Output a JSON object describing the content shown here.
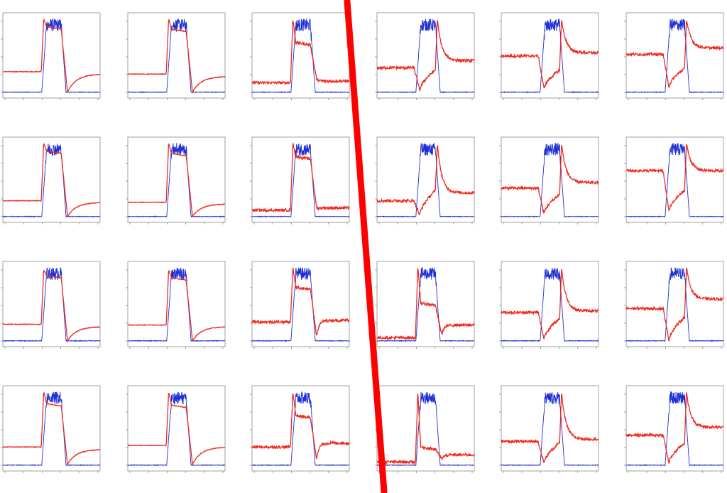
{
  "chart_data": {
    "type": "line",
    "layout": {
      "rows": 4,
      "cols": 6
    },
    "x_range": [
      0,
      100
    ],
    "y_range": [
      0,
      1
    ],
    "grid": false,
    "legend": "none",
    "colors": {
      "blue_series": "#1f2fd6",
      "red_series": "#ee2a1e",
      "divider": "#ff0000",
      "frame": "#8a8a8a"
    },
    "series_names": [
      "blue",
      "red"
    ],
    "blue_profile": {
      "baseline": 0.02,
      "plateau": 0.88,
      "rise": [
        40,
        45
      ],
      "fall": [
        60,
        65
      ],
      "noise_band": 0.1
    },
    "divider": {
      "type": "diagonal-line",
      "separates_columns": [
        3,
        4
      ]
    },
    "panels": [
      {
        "row": 1,
        "col": 1,
        "red": {
          "base_before": 0.28,
          "peak": 0.95,
          "plateau": 0.85,
          "dip": 0.02,
          "base_after": 0.25,
          "recovery": "slow"
        }
      },
      {
        "row": 1,
        "col": 2,
        "red": {
          "base_before": 0.25,
          "peak": 0.95,
          "plateau": 0.82,
          "dip": 0.02,
          "base_after": 0.22,
          "recovery": "slow"
        }
      },
      {
        "row": 1,
        "col": 3,
        "red": {
          "base_before": 0.14,
          "peak": 0.95,
          "plateau": 0.65,
          "dip": 0.18,
          "base_after": 0.16,
          "recovery": "fast"
        }
      },
      {
        "row": 1,
        "col": 4,
        "red": {
          "base_before": 0.33,
          "peak": 0.95,
          "plateau": 0.3,
          "dip": 0.04,
          "base_after": 0.42,
          "recovery": "decay"
        }
      },
      {
        "row": 1,
        "col": 5,
        "red": {
          "base_before": 0.48,
          "peak": 0.95,
          "plateau": 0.3,
          "dip": 0.06,
          "base_after": 0.52,
          "recovery": "decay"
        }
      },
      {
        "row": 1,
        "col": 6,
        "red": {
          "base_before": 0.5,
          "peak": 0.95,
          "plateau": 0.32,
          "dip": 0.08,
          "base_after": 0.58,
          "recovery": "decay"
        }
      },
      {
        "row": 2,
        "col": 1,
        "red": {
          "base_before": 0.22,
          "peak": 0.95,
          "plateau": 0.85,
          "dip": 0.02,
          "base_after": 0.2,
          "recovery": "slow"
        }
      },
      {
        "row": 2,
        "col": 2,
        "red": {
          "base_before": 0.2,
          "peak": 0.95,
          "plateau": 0.82,
          "dip": 0.02,
          "base_after": 0.18,
          "recovery": "slow"
        }
      },
      {
        "row": 2,
        "col": 3,
        "red": {
          "base_before": 0.1,
          "peak": 0.95,
          "plateau": 0.78,
          "dip": 0.12,
          "base_after": 0.13,
          "recovery": "fast"
        }
      },
      {
        "row": 2,
        "col": 4,
        "red": {
          "base_before": 0.22,
          "peak": 0.95,
          "plateau": 0.35,
          "dip": 0.03,
          "base_after": 0.32,
          "recovery": "decay"
        }
      },
      {
        "row": 2,
        "col": 5,
        "red": {
          "base_before": 0.38,
          "peak": 0.95,
          "plateau": 0.3,
          "dip": 0.05,
          "base_after": 0.45,
          "recovery": "decay"
        }
      },
      {
        "row": 2,
        "col": 6,
        "red": {
          "base_before": 0.6,
          "peak": 0.95,
          "plateau": 0.35,
          "dip": 0.08,
          "base_after": 0.6,
          "recovery": "decay"
        }
      },
      {
        "row": 3,
        "col": 1,
        "red": {
          "base_before": 0.23,
          "peak": 0.92,
          "plateau": 0.85,
          "dip": 0.02,
          "base_after": 0.2,
          "recovery": "slow"
        }
      },
      {
        "row": 3,
        "col": 2,
        "red": {
          "base_before": 0.22,
          "peak": 0.92,
          "plateau": 0.82,
          "dip": 0.02,
          "base_after": 0.2,
          "recovery": "slow"
        }
      },
      {
        "row": 3,
        "col": 3,
        "red": {
          "base_before": 0.26,
          "peak": 0.95,
          "plateau": 0.7,
          "dip": 0.08,
          "base_after": 0.28,
          "recovery": "fast"
        }
      },
      {
        "row": 3,
        "col": 4,
        "red": {
          "base_before": 0.06,
          "peak": 0.95,
          "plateau": 0.5,
          "dip": 0.1,
          "base_after": 0.22,
          "recovery": "fast"
        }
      },
      {
        "row": 3,
        "col": 5,
        "red": {
          "base_before": 0.38,
          "peak": 0.95,
          "plateau": 0.3,
          "dip": 0.04,
          "base_after": 0.4,
          "recovery": "decay"
        }
      },
      {
        "row": 3,
        "col": 6,
        "red": {
          "base_before": 0.43,
          "peak": 0.95,
          "plateau": 0.32,
          "dip": 0.02,
          "base_after": 0.55,
          "recovery": "decay"
        }
      },
      {
        "row": 4,
        "col": 1,
        "red": {
          "base_before": 0.25,
          "peak": 0.95,
          "plateau": 0.8,
          "dip": 0.03,
          "base_after": 0.22,
          "recovery": "slow"
        }
      },
      {
        "row": 4,
        "col": 2,
        "red": {
          "base_before": 0.27,
          "peak": 0.95,
          "plateau": 0.78,
          "dip": 0.03,
          "base_after": 0.25,
          "recovery": "slow"
        }
      },
      {
        "row": 4,
        "col": 3,
        "red": {
          "base_before": 0.25,
          "peak": 0.95,
          "plateau": 0.65,
          "dip": 0.1,
          "base_after": 0.3,
          "recovery": "fast"
        }
      },
      {
        "row": 4,
        "col": 4,
        "red": {
          "base_before": 0.06,
          "peak": 0.95,
          "plateau": 0.25,
          "dip": 0.1,
          "base_after": 0.15,
          "recovery": "fast"
        }
      },
      {
        "row": 4,
        "col": 5,
        "red": {
          "base_before": 0.32,
          "peak": 0.95,
          "plateau": 0.3,
          "dip": 0.04,
          "base_after": 0.35,
          "recovery": "decay"
        }
      },
      {
        "row": 4,
        "col": 6,
        "red": {
          "base_before": 0.4,
          "peak": 0.95,
          "plateau": 0.3,
          "dip": 0.04,
          "base_after": 0.5,
          "recovery": "decay"
        }
      }
    ]
  }
}
